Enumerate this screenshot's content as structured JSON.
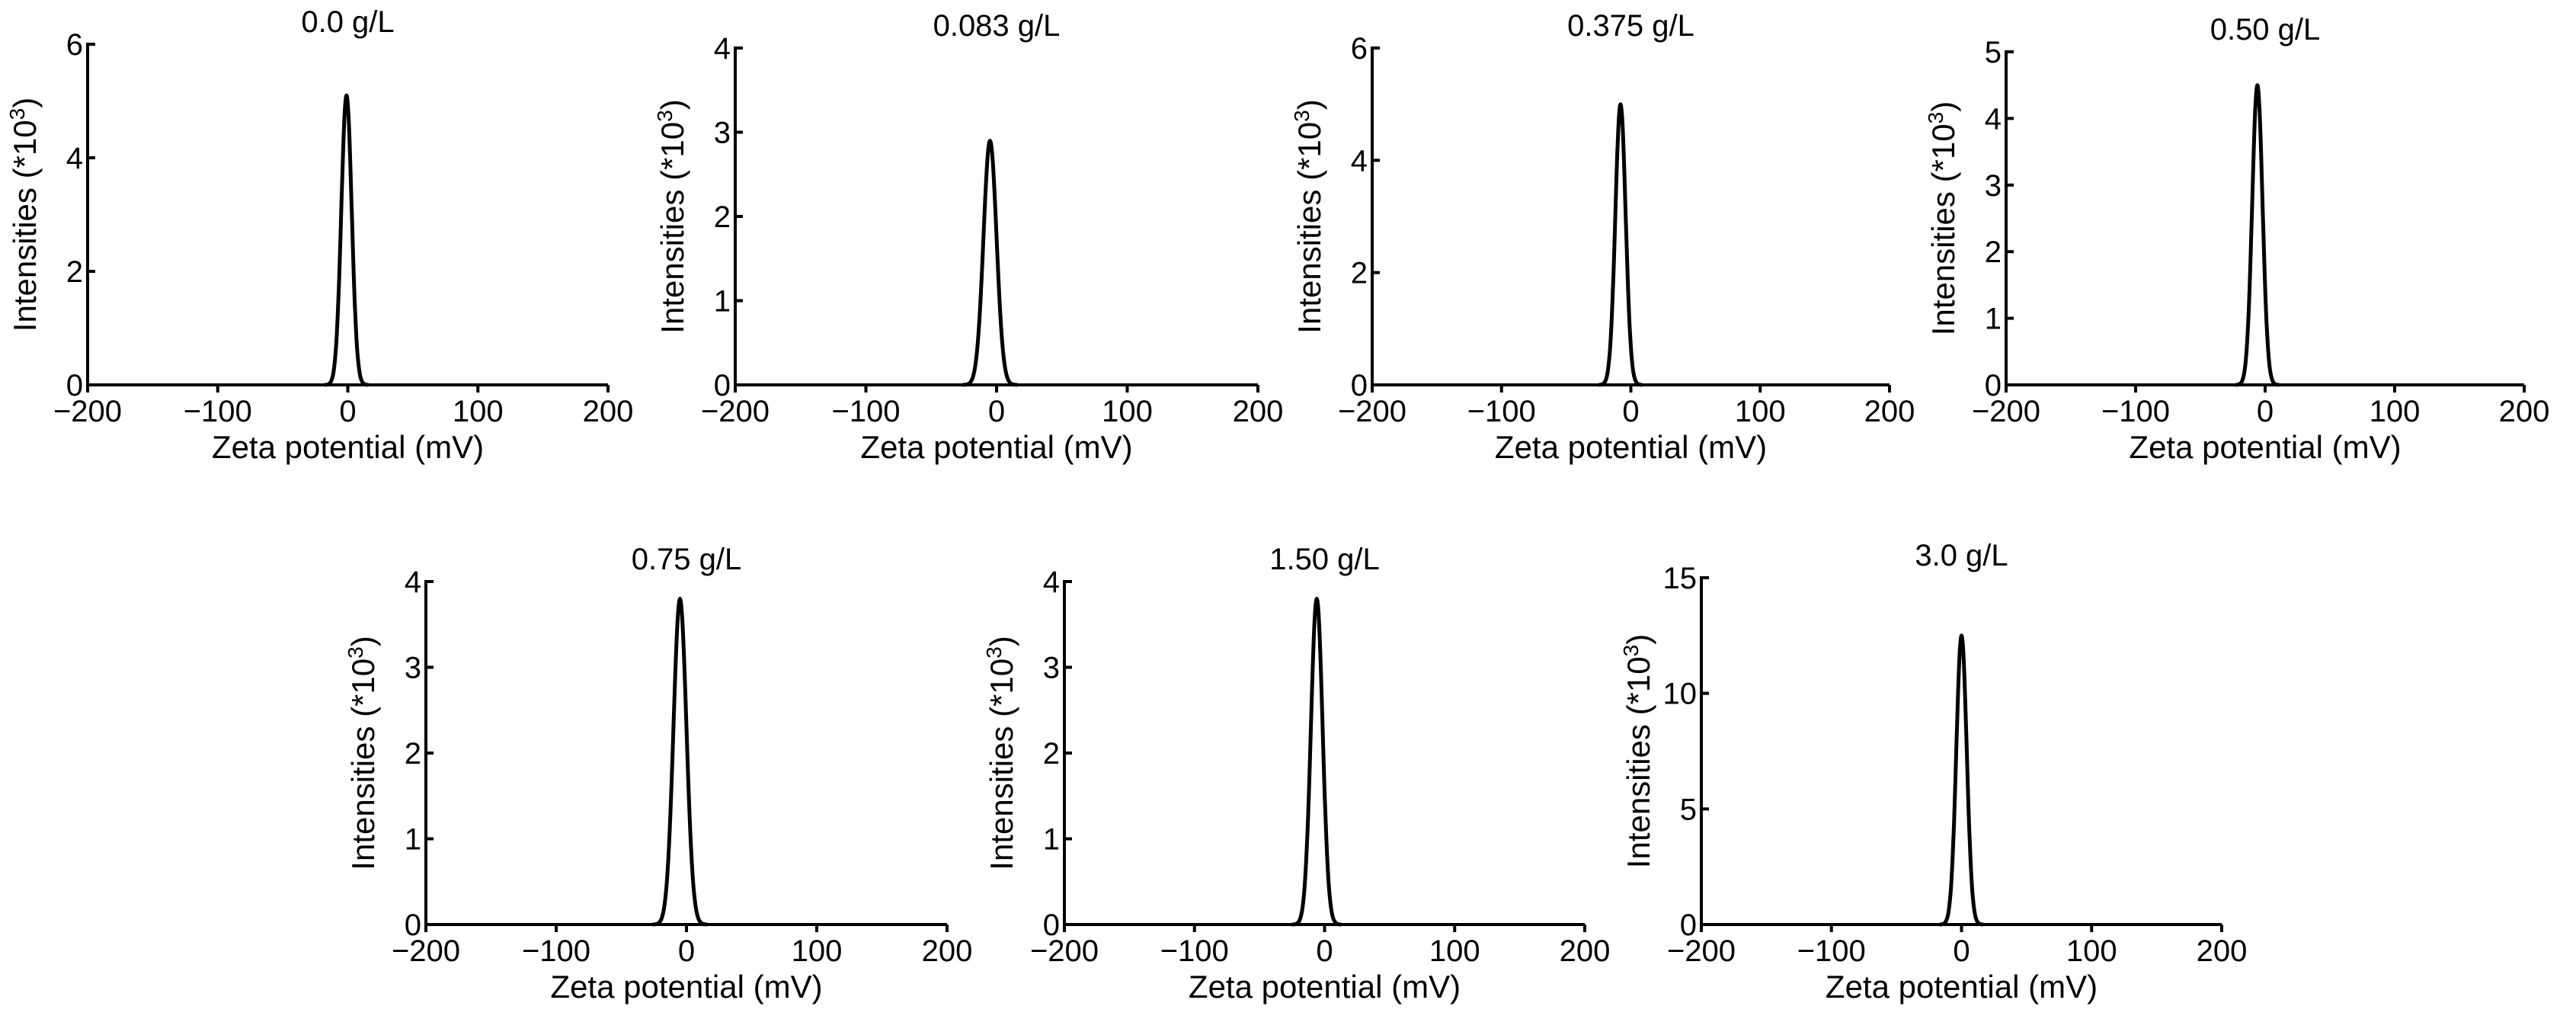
{
  "chart_data": [
    {
      "type": "line",
      "title": "0.0 g/L",
      "xlabel": "Zeta potential (mV)",
      "ylabel_main": "Intensities (*10",
      "ylabel_sup": "3",
      "ylabel_close": ")",
      "xlim": [
        -200,
        200
      ],
      "xticks": [
        -200,
        -100,
        0,
        100,
        200
      ],
      "xtick_labels": [
        "−200",
        "−100",
        "0",
        "100",
        "200"
      ],
      "ylim": [
        0,
        6
      ],
      "yticks": [
        0,
        2,
        4,
        6
      ],
      "ytick_labels": [
        "0",
        "2",
        "4",
        "6"
      ],
      "peak": {
        "center": -1,
        "height": 5.1,
        "sigma": 4
      }
    },
    {
      "type": "line",
      "title": "0.083 g/L",
      "xlabel": "Zeta potential (mV)",
      "ylabel_main": "Intensities (*10",
      "ylabel_sup": "3",
      "ylabel_close": ")",
      "xlim": [
        -200,
        200
      ],
      "xticks": [
        -200,
        -100,
        0,
        100,
        200
      ],
      "xtick_labels": [
        "−200",
        "−100",
        "0",
        "100",
        "200"
      ],
      "ylim": [
        0,
        4
      ],
      "yticks": [
        0,
        1,
        2,
        3,
        4
      ],
      "ytick_labels": [
        "0",
        "1",
        "2",
        "3",
        "4"
      ],
      "peak": {
        "center": -5,
        "height": 2.9,
        "sigma": 5
      }
    },
    {
      "type": "line",
      "title": "0.375 g/L",
      "xlabel": "Zeta potential (mV)",
      "ylabel_main": "Intensities (*10",
      "ylabel_sup": "3",
      "ylabel_close": ")",
      "xlim": [
        -200,
        200
      ],
      "xticks": [
        -200,
        -100,
        0,
        100,
        200
      ],
      "xtick_labels": [
        "−200",
        "−100",
        "0",
        "100",
        "200"
      ],
      "ylim": [
        0,
        6
      ],
      "yticks": [
        0,
        2,
        4,
        6
      ],
      "ytick_labels": [
        "0",
        "2",
        "4",
        "6"
      ],
      "peak": {
        "center": -8,
        "height": 5.0,
        "sigma": 4
      }
    },
    {
      "type": "line",
      "title": "0.50 g/L",
      "xlabel": "Zeta potential (mV)",
      "ylabel_main": "Intensities (*10",
      "ylabel_sup": "3",
      "ylabel_close": ")",
      "xlim": [
        -200,
        200
      ],
      "xticks": [
        -200,
        -100,
        0,
        100,
        200
      ],
      "xtick_labels": [
        "−200",
        "−100",
        "0",
        "100",
        "200"
      ],
      "ylim": [
        0,
        5
      ],
      "yticks": [
        0,
        1,
        2,
        3,
        4,
        5
      ],
      "ytick_labels": [
        "0",
        "1",
        "2",
        "3",
        "4",
        "5"
      ],
      "peak": {
        "center": -6,
        "height": 4.5,
        "sigma": 4
      }
    },
    {
      "type": "line",
      "title": "0.75 g/L",
      "xlabel": "Zeta potential (mV)",
      "ylabel_main": "Intensities (*10",
      "ylabel_sup": "3",
      "ylabel_close": ")",
      "xlim": [
        -200,
        200
      ],
      "xticks": [
        -200,
        -100,
        0,
        100,
        200
      ],
      "xtick_labels": [
        "−200",
        "−100",
        "0",
        "100",
        "200"
      ],
      "ylim": [
        0,
        4
      ],
      "yticks": [
        0,
        1,
        2,
        3,
        4
      ],
      "ytick_labels": [
        "0",
        "1",
        "2",
        "3",
        "4"
      ],
      "peak": {
        "center": -5,
        "height": 3.8,
        "sigma": 5
      }
    },
    {
      "type": "line",
      "title": "1.50 g/L",
      "xlabel": "Zeta potential (mV)",
      "ylabel_main": "Intensities (*10",
      "ylabel_sup": "3",
      "ylabel_close": ")",
      "xlim": [
        -200,
        200
      ],
      "xticks": [
        -200,
        -100,
        0,
        100,
        200
      ],
      "xtick_labels": [
        "−200",
        "−100",
        "0",
        "100",
        "200"
      ],
      "ylim": [
        0,
        4
      ],
      "yticks": [
        0,
        1,
        2,
        3,
        4
      ],
      "ytick_labels": [
        "0",
        "1",
        "2",
        "3",
        "4"
      ],
      "peak": {
        "center": -6,
        "height": 3.8,
        "sigma": 4.5
      }
    },
    {
      "type": "line",
      "title": "3.0 g/L",
      "xlabel": "Zeta potential (mV)",
      "ylabel_main": "Intensities (*10",
      "ylabel_sup": "3",
      "ylabel_close": ")",
      "xlim": [
        -200,
        200
      ],
      "xticks": [
        -200,
        -100,
        0,
        100,
        200
      ],
      "xtick_labels": [
        "−200",
        "−100",
        "0",
        "100",
        "200"
      ],
      "ylim": [
        0,
        15
      ],
      "yticks": [
        0,
        5,
        10,
        15
      ],
      "ytick_labels": [
        "0",
        "5",
        "10",
        "15"
      ],
      "peak": {
        "center": 0,
        "height": 12.5,
        "sigma": 4
      }
    }
  ]
}
